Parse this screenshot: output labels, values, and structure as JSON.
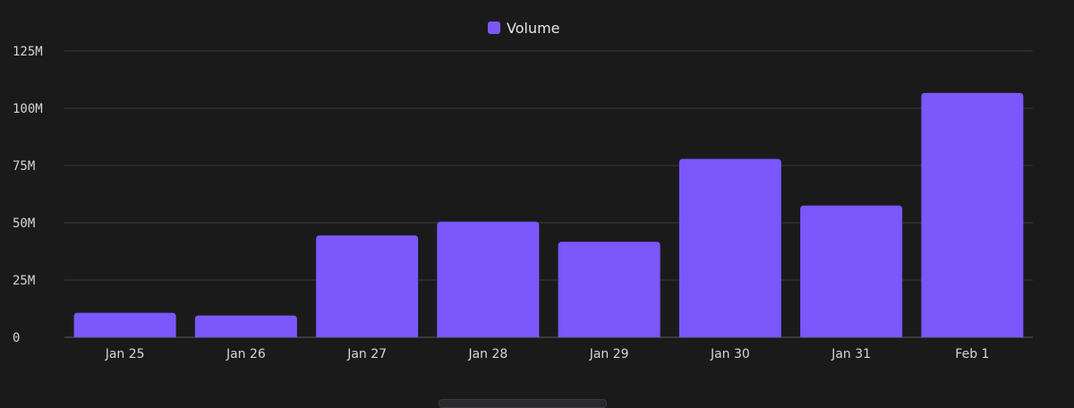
{
  "colors": {
    "background": "#1b1a1b",
    "bar": "#7b57fc",
    "grid": "#3a393b",
    "text": "#d6d6d6"
  },
  "chart_data": {
    "type": "bar",
    "title": "",
    "xlabel": "",
    "ylabel": "",
    "legend": [
      "Volume"
    ],
    "legend_position": "top-center",
    "categories": [
      "Jan 25",
      "Jan 26",
      "Jan 27",
      "Jan 28",
      "Jan 29",
      "Jan 30",
      "Jan 31",
      "Feb 1"
    ],
    "series": [
      {
        "name": "Volume",
        "values": [
          10.7,
          9.5,
          44.5,
          50.5,
          41.7,
          77.9,
          57.5,
          106.7
        ]
      }
    ],
    "unit": "M",
    "ylim": [
      0,
      125
    ],
    "yticks": [
      0,
      25,
      50,
      75,
      100,
      125
    ],
    "ytick_labels": [
      "0",
      "25M",
      "50M",
      "75M",
      "100M",
      "125M"
    ],
    "grid": true
  }
}
